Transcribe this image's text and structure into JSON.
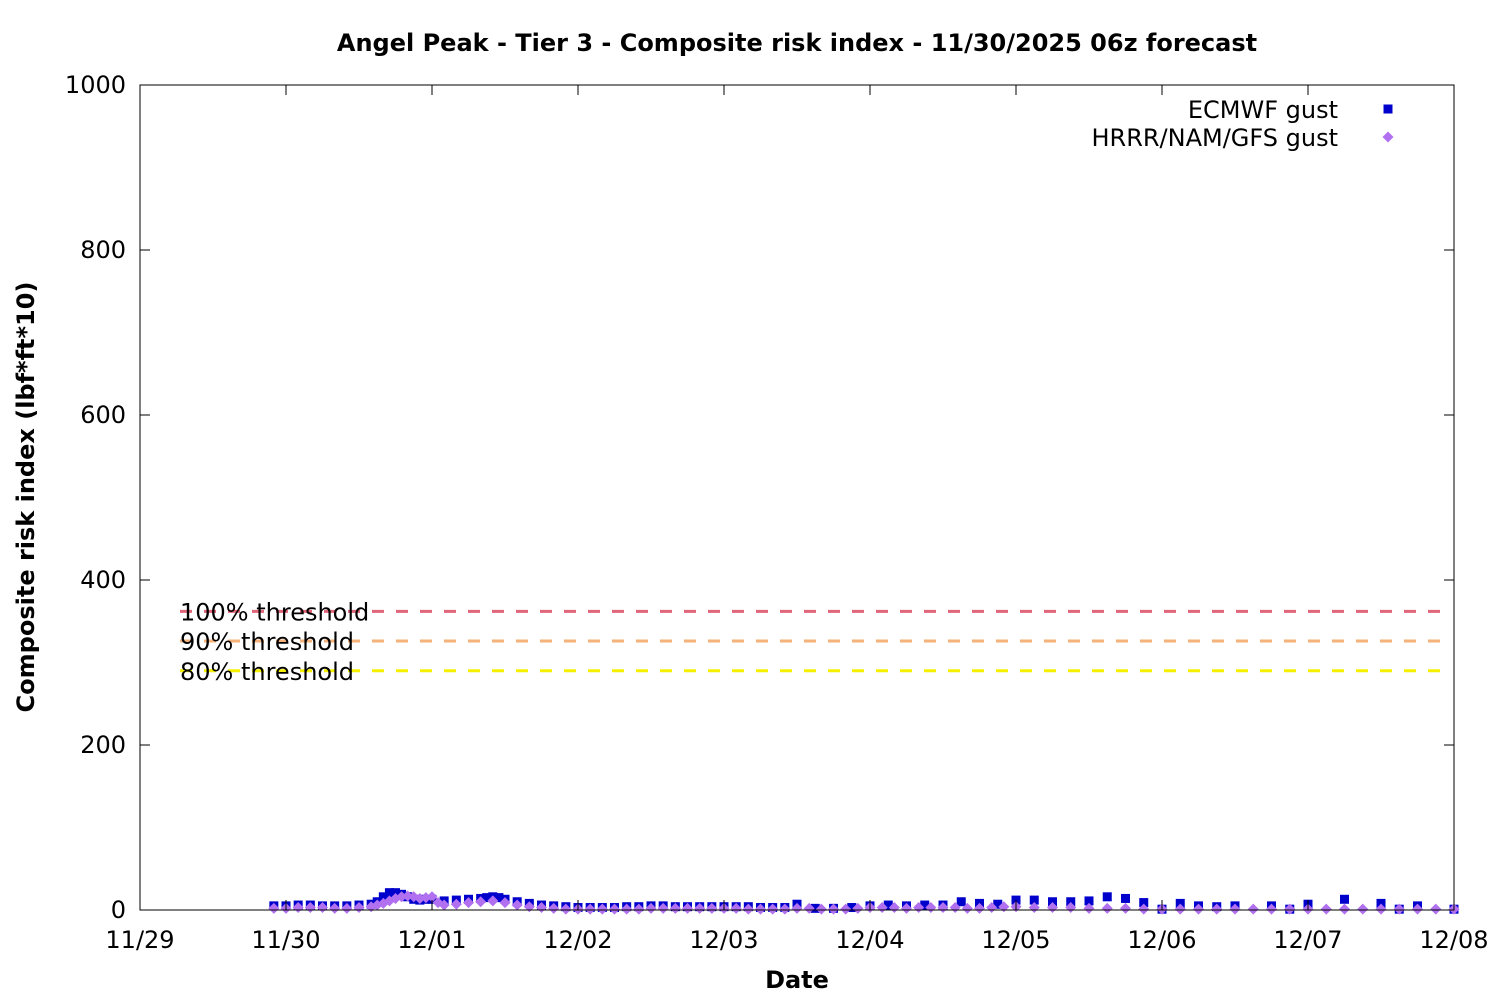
{
  "chart_data": {
    "type": "scatter",
    "title": "Angel Peak - Tier 3 - Composite risk index - 11/30/2025 06z forecast",
    "xlabel": "Date",
    "ylabel": "Composite risk index (lbf*ft*10)",
    "xlim": [
      "2025-11-29T00:00",
      "2025-12-08T00:00"
    ],
    "ylim": [
      0,
      1000
    ],
    "x_ticks": [
      "11/29",
      "11/30",
      "12/01",
      "12/02",
      "12/03",
      "12/04",
      "12/05",
      "12/06",
      "12/07",
      "12/08"
    ],
    "y_ticks": [
      "0",
      "200",
      "400",
      "600",
      "800",
      "1000"
    ],
    "legend_position": "top-right",
    "grid": false,
    "thresholds": [
      {
        "label": "100% threshold",
        "value": 362,
        "color": "#e0667a"
      },
      {
        "label": "90% threshold",
        "value": 326,
        "color": "#f5b27a"
      },
      {
        "label": "80% threshold",
        "value": 290,
        "color": "#f5f000"
      }
    ],
    "series": [
      {
        "name": "ECMWF gust",
        "color": "#0000cc",
        "marker": "square",
        "points": [
          [
            "2025-11-29T22:00",
            5
          ],
          [
            "2025-11-30T00:00",
            5
          ],
          [
            "2025-11-30T02:00",
            6
          ],
          [
            "2025-11-30T04:00",
            6
          ],
          [
            "2025-11-30T06:00",
            5
          ],
          [
            "2025-11-30T08:00",
            5
          ],
          [
            "2025-11-30T10:00",
            5
          ],
          [
            "2025-11-30T12:00",
            6
          ],
          [
            "2025-11-30T14:00",
            7
          ],
          [
            "2025-11-30T15:00",
            10
          ],
          [
            "2025-11-30T16:00",
            16
          ],
          [
            "2025-11-30T17:00",
            21
          ],
          [
            "2025-11-30T18:00",
            21
          ],
          [
            "2025-11-30T19:00",
            19
          ],
          [
            "2025-11-30T20:00",
            16
          ],
          [
            "2025-11-30T21:00",
            13
          ],
          [
            "2025-11-30T22:00",
            12
          ],
          [
            "2025-11-30T23:00",
            13
          ],
          [
            "2025-12-01T00:00",
            13
          ],
          [
            "2025-12-01T02:00",
            11
          ],
          [
            "2025-12-01T04:00",
            12
          ],
          [
            "2025-12-01T06:00",
            13
          ],
          [
            "2025-12-01T08:00",
            14
          ],
          [
            "2025-12-01T09:00",
            15
          ],
          [
            "2025-12-01T10:00",
            16
          ],
          [
            "2025-12-01T11:00",
            15
          ],
          [
            "2025-12-01T12:00",
            13
          ],
          [
            "2025-12-01T14:00",
            10
          ],
          [
            "2025-12-01T16:00",
            8
          ],
          [
            "2025-12-01T18:00",
            6
          ],
          [
            "2025-12-01T20:00",
            5
          ],
          [
            "2025-12-01T22:00",
            4
          ],
          [
            "2025-12-02T00:00",
            3
          ],
          [
            "2025-12-02T02:00",
            3
          ],
          [
            "2025-12-02T04:00",
            3
          ],
          [
            "2025-12-02T06:00",
            3
          ],
          [
            "2025-12-02T08:00",
            4
          ],
          [
            "2025-12-02T10:00",
            4
          ],
          [
            "2025-12-02T12:00",
            5
          ],
          [
            "2025-12-02T14:00",
            5
          ],
          [
            "2025-12-02T16:00",
            4
          ],
          [
            "2025-12-02T18:00",
            4
          ],
          [
            "2025-12-02T20:00",
            4
          ],
          [
            "2025-12-02T22:00",
            4
          ],
          [
            "2025-12-03T00:00",
            4
          ],
          [
            "2025-12-03T02:00",
            4
          ],
          [
            "2025-12-03T04:00",
            4
          ],
          [
            "2025-12-03T06:00",
            3
          ],
          [
            "2025-12-03T08:00",
            3
          ],
          [
            "2025-12-03T10:00",
            3
          ],
          [
            "2025-12-03T12:00",
            7
          ],
          [
            "2025-12-03T15:00",
            2
          ],
          [
            "2025-12-03T18:00",
            2
          ],
          [
            "2025-12-03T21:00",
            3
          ],
          [
            "2025-12-04T00:00",
            5
          ],
          [
            "2025-12-04T03:00",
            6
          ],
          [
            "2025-12-04T06:00",
            5
          ],
          [
            "2025-12-04T09:00",
            6
          ],
          [
            "2025-12-04T12:00",
            6
          ],
          [
            "2025-12-04T15:00",
            10
          ],
          [
            "2025-12-04T18:00",
            8
          ],
          [
            "2025-12-04T21:00",
            7
          ],
          [
            "2025-12-05T00:00",
            12
          ],
          [
            "2025-12-05T03:00",
            12
          ],
          [
            "2025-12-05T06:00",
            10
          ],
          [
            "2025-12-05T09:00",
            10
          ],
          [
            "2025-12-05T12:00",
            11
          ],
          [
            "2025-12-05T15:00",
            16
          ],
          [
            "2025-12-05T18:00",
            14
          ],
          [
            "2025-12-05T21:00",
            9
          ],
          [
            "2025-12-06T00:00",
            1
          ],
          [
            "2025-12-06T03:00",
            8
          ],
          [
            "2025-12-06T06:00",
            5
          ],
          [
            "2025-12-06T09:00",
            4
          ],
          [
            "2025-12-06T12:00",
            5
          ],
          [
            "2025-12-06T18:00",
            5
          ],
          [
            "2025-12-06T21:00",
            1
          ],
          [
            "2025-12-07T00:00",
            7
          ],
          [
            "2025-12-07T06:00",
            13
          ],
          [
            "2025-12-07T12:00",
            8
          ],
          [
            "2025-12-07T15:00",
            1
          ],
          [
            "2025-12-07T18:00",
            5
          ],
          [
            "2025-12-08T00:00",
            1
          ]
        ]
      },
      {
        "name": "HRRR/NAM/GFS gust",
        "color": "#b070f0",
        "marker": "diamond",
        "points": [
          [
            "2025-11-29T22:00",
            2
          ],
          [
            "2025-11-30T00:00",
            2
          ],
          [
            "2025-11-30T02:00",
            3
          ],
          [
            "2025-11-30T04:00",
            3
          ],
          [
            "2025-11-30T06:00",
            3
          ],
          [
            "2025-11-30T08:00",
            2
          ],
          [
            "2025-11-30T10:00",
            2
          ],
          [
            "2025-11-30T12:00",
            3
          ],
          [
            "2025-11-30T14:00",
            4
          ],
          [
            "2025-11-30T15:00",
            6
          ],
          [
            "2025-11-30T16:00",
            8
          ],
          [
            "2025-11-30T17:00",
            11
          ],
          [
            "2025-11-30T18:00",
            14
          ],
          [
            "2025-11-30T19:00",
            16
          ],
          [
            "2025-11-30T20:00",
            17
          ],
          [
            "2025-11-30T21:00",
            16
          ],
          [
            "2025-11-30T22:00",
            14
          ],
          [
            "2025-11-30T23:00",
            15
          ],
          [
            "2025-12-01T00:00",
            16
          ],
          [
            "2025-12-01T01:00",
            9
          ],
          [
            "2025-12-01T02:00",
            6
          ],
          [
            "2025-12-01T04:00",
            7
          ],
          [
            "2025-12-01T06:00",
            9
          ],
          [
            "2025-12-01T08:00",
            10
          ],
          [
            "2025-12-01T10:00",
            11
          ],
          [
            "2025-12-01T12:00",
            9
          ],
          [
            "2025-12-01T14:00",
            6
          ],
          [
            "2025-12-01T16:00",
            4
          ],
          [
            "2025-12-01T18:00",
            3
          ],
          [
            "2025-12-01T20:00",
            2
          ],
          [
            "2025-12-01T22:00",
            1
          ],
          [
            "2025-12-02T00:00",
            1
          ],
          [
            "2025-12-02T02:00",
            1
          ],
          [
            "2025-12-02T04:00",
            1
          ],
          [
            "2025-12-02T06:00",
            1
          ],
          [
            "2025-12-02T08:00",
            1
          ],
          [
            "2025-12-02T10:00",
            1
          ],
          [
            "2025-12-02T12:00",
            2
          ],
          [
            "2025-12-02T14:00",
            2
          ],
          [
            "2025-12-02T16:00",
            2
          ],
          [
            "2025-12-02T18:00",
            2
          ],
          [
            "2025-12-02T20:00",
            2
          ],
          [
            "2025-12-02T22:00",
            2
          ],
          [
            "2025-12-03T00:00",
            2
          ],
          [
            "2025-12-03T02:00",
            2
          ],
          [
            "2025-12-03T04:00",
            1
          ],
          [
            "2025-12-03T06:00",
            1
          ],
          [
            "2025-12-03T08:00",
            1
          ],
          [
            "2025-12-03T10:00",
            1
          ],
          [
            "2025-12-03T12:00",
            2
          ],
          [
            "2025-12-03T14:00",
            2
          ],
          [
            "2025-12-03T16:00",
            1
          ],
          [
            "2025-12-03T18:00",
            1
          ],
          [
            "2025-12-03T20:00",
            1
          ],
          [
            "2025-12-03T22:00",
            2
          ],
          [
            "2025-12-04T00:00",
            3
          ],
          [
            "2025-12-04T02:00",
            3
          ],
          [
            "2025-12-04T04:00",
            3
          ],
          [
            "2025-12-04T06:00",
            2
          ],
          [
            "2025-12-04T08:00",
            3
          ],
          [
            "2025-12-04T10:00",
            3
          ],
          [
            "2025-12-04T12:00",
            3
          ],
          [
            "2025-12-04T14:00",
            3
          ],
          [
            "2025-12-04T16:00",
            2
          ],
          [
            "2025-12-04T18:00",
            2
          ],
          [
            "2025-12-04T20:00",
            3
          ],
          [
            "2025-12-04T22:00",
            4
          ],
          [
            "2025-12-05T00:00",
            4
          ],
          [
            "2025-12-05T03:00",
            3
          ],
          [
            "2025-12-05T06:00",
            3
          ],
          [
            "2025-12-05T09:00",
            3
          ],
          [
            "2025-12-05T12:00",
            2
          ],
          [
            "2025-12-05T15:00",
            2
          ],
          [
            "2025-12-05T18:00",
            2
          ],
          [
            "2025-12-05T21:00",
            1
          ],
          [
            "2025-12-06T00:00",
            1
          ],
          [
            "2025-12-06T03:00",
            1
          ],
          [
            "2025-12-06T06:00",
            1
          ],
          [
            "2025-12-06T09:00",
            1
          ],
          [
            "2025-12-06T12:00",
            1
          ],
          [
            "2025-12-06T15:00",
            1
          ],
          [
            "2025-12-06T18:00",
            1
          ],
          [
            "2025-12-06T21:00",
            1
          ],
          [
            "2025-12-07T00:00",
            1
          ],
          [
            "2025-12-07T03:00",
            1
          ],
          [
            "2025-12-07T06:00",
            1
          ],
          [
            "2025-12-07T09:00",
            1
          ],
          [
            "2025-12-07T12:00",
            1
          ],
          [
            "2025-12-07T15:00",
            1
          ],
          [
            "2025-12-07T18:00",
            1
          ],
          [
            "2025-12-07T21:00",
            1
          ],
          [
            "2025-12-08T00:00",
            1
          ]
        ]
      }
    ]
  }
}
